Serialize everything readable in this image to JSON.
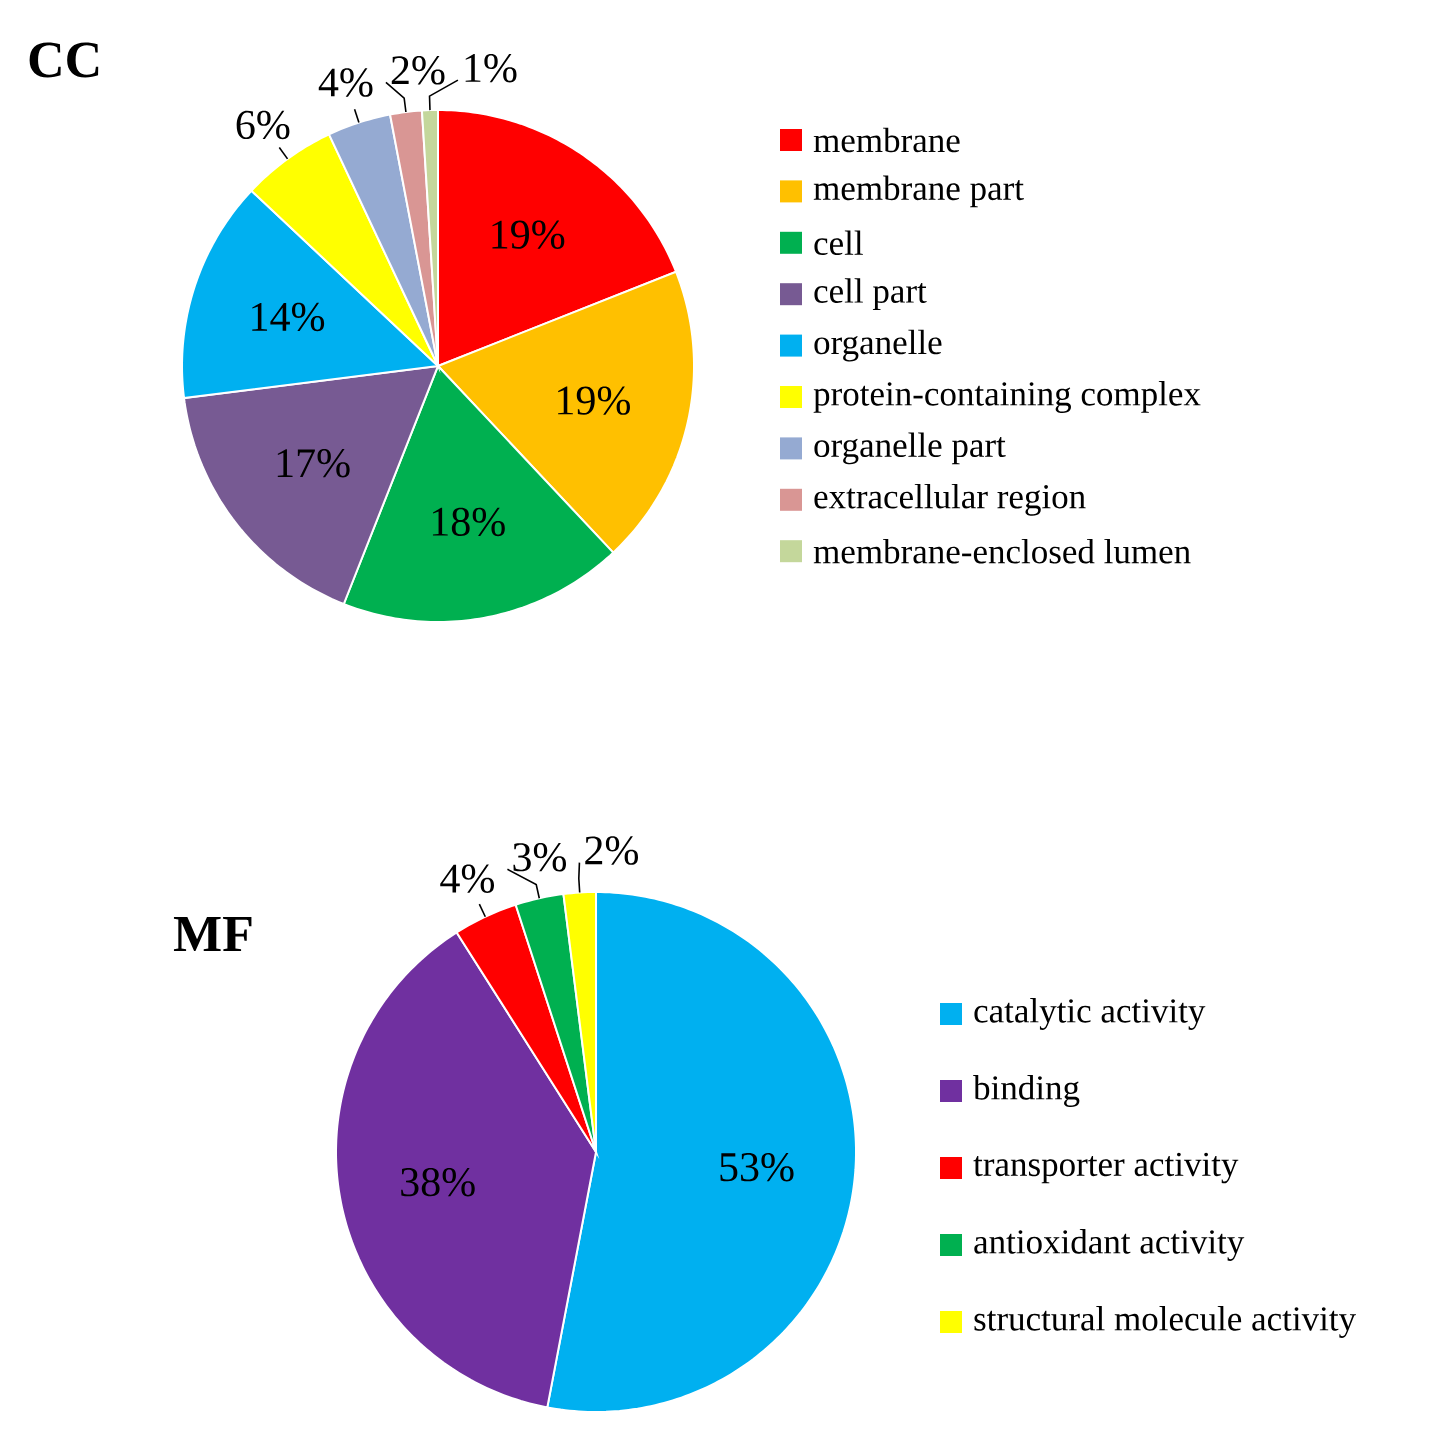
{
  "chart_data": [
    {
      "type": "pie",
      "title": "CC",
      "categories": [
        "membrane",
        "membrane part",
        "cell",
        "cell part",
        "organelle",
        "protein-containing complex",
        "organelle part",
        "extracellular region",
        "membrane-enclosed lumen"
      ],
      "values": [
        19,
        19,
        18,
        17,
        14,
        6,
        4,
        2,
        1
      ],
      "value_labels": [
        "19%",
        "19%",
        "18%",
        "17%",
        "14%",
        "6%",
        "4%",
        "2%",
        "1%"
      ],
      "colors": [
        "#ff0000",
        "#ffc000",
        "#00b050",
        "#775a93",
        "#00b0f0",
        "#ffff00",
        "#95aad2",
        "#d99694",
        "#c4d79b"
      ],
      "legend": "right"
    },
    {
      "type": "pie",
      "title": "MF",
      "categories": [
        "catalytic activity",
        "binding",
        "transporter activity",
        "antioxidant activity",
        "structural molecule activity"
      ],
      "values": [
        53,
        38,
        4,
        3,
        2
      ],
      "value_labels": [
        "53%",
        "38%",
        "4%",
        "3%",
        "2%"
      ],
      "colors": [
        "#00b0f0",
        "#7030a0",
        "#ff0000",
        "#00b050",
        "#ffff00"
      ],
      "legend": "right"
    }
  ]
}
